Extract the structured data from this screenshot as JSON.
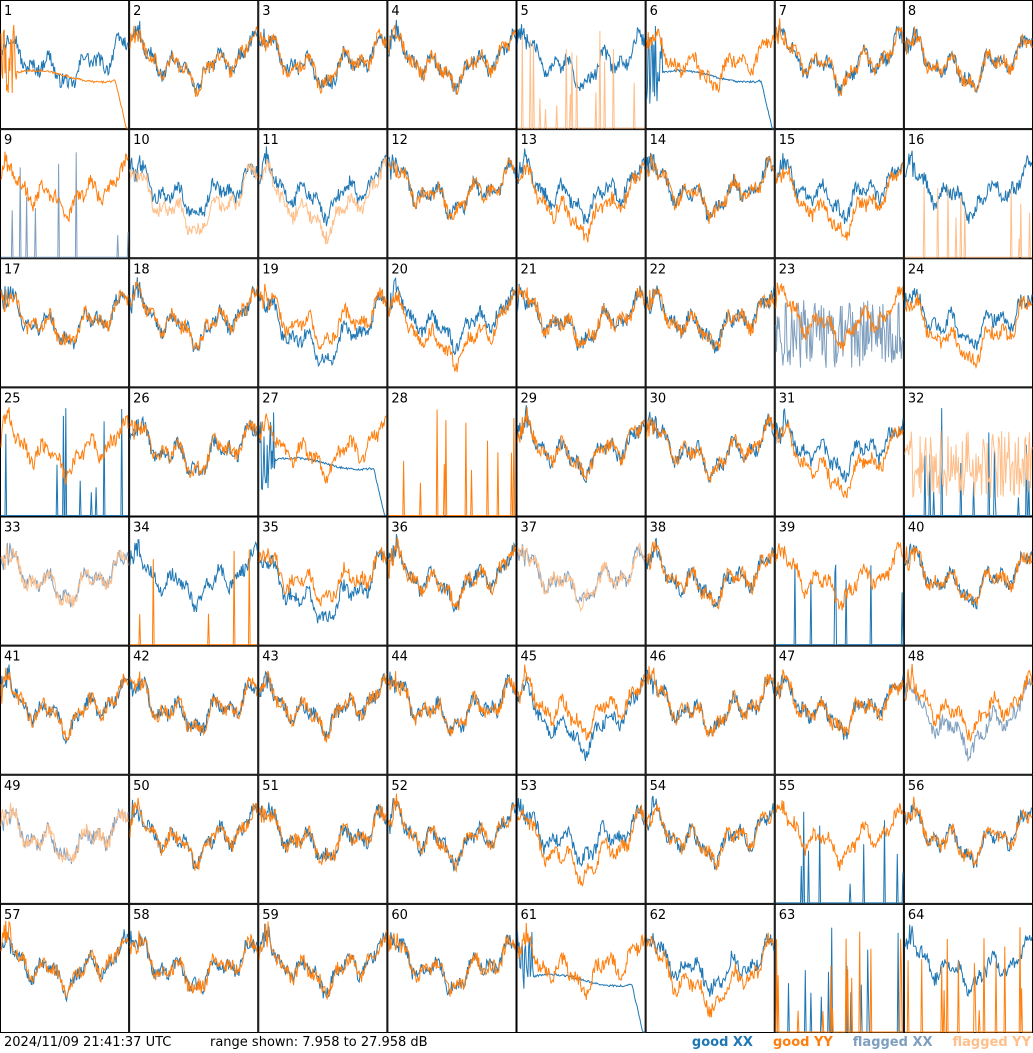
{
  "footer": {
    "timestamp": "2024/11/09 21:41:37 UTC",
    "range": "range shown: 7.958 to 27.958 dB"
  },
  "legend": [
    {
      "label": "good XX",
      "color": "#1f77b4"
    },
    {
      "label": "good YY",
      "color": "#ff7f0e"
    },
    {
      "label": "flagged XX",
      "color": "#7f9fbf"
    },
    {
      "label": "flagged YY",
      "color": "#ffbf8a"
    }
  ],
  "chart_data": {
    "type": "line",
    "layout": "8x8 small multiples",
    "ylim_db": [
      7.958,
      27.958
    ],
    "cells": [
      {
        "id": "1",
        "xx": "good",
        "yy": "good",
        "xx_shape": "normal",
        "yy_shape": "smooth_droop"
      },
      {
        "id": "2",
        "xx": "good",
        "yy": "good",
        "xx_shape": "normal",
        "yy_shape": "normal"
      },
      {
        "id": "3",
        "xx": "good",
        "yy": "good",
        "xx_shape": "normal",
        "yy_shape": "normal"
      },
      {
        "id": "4",
        "xx": "good",
        "yy": "good",
        "xx_shape": "normal",
        "yy_shape": "normal"
      },
      {
        "id": "5",
        "xx": "good",
        "yy": "flagged",
        "xx_shape": "normal",
        "yy_shape": "spikes"
      },
      {
        "id": "6",
        "xx": "good",
        "yy": "good",
        "xx_shape": "smooth_droop",
        "yy_shape": "normal"
      },
      {
        "id": "7",
        "xx": "good",
        "yy": "good",
        "xx_shape": "normal",
        "yy_shape": "normal"
      },
      {
        "id": "8",
        "xx": "good",
        "yy": "good",
        "xx_shape": "normal",
        "yy_shape": "normal"
      },
      {
        "id": "9",
        "xx": "flagged",
        "yy": "good",
        "xx_shape": "spikes",
        "yy_shape": "normal"
      },
      {
        "id": "10",
        "xx": "good",
        "yy": "flagged",
        "xx_shape": "normal",
        "yy_shape": "deep"
      },
      {
        "id": "11",
        "xx": "good",
        "yy": "flagged",
        "xx_shape": "normal",
        "yy_shape": "deep"
      },
      {
        "id": "12",
        "xx": "good",
        "yy": "good",
        "xx_shape": "normal",
        "yy_shape": "normal"
      },
      {
        "id": "13",
        "xx": "good",
        "yy": "good",
        "xx_shape": "normal",
        "yy_shape": "deep"
      },
      {
        "id": "14",
        "xx": "good",
        "yy": "good",
        "xx_shape": "normal",
        "yy_shape": "normal"
      },
      {
        "id": "15",
        "xx": "good",
        "yy": "good",
        "xx_shape": "normal",
        "yy_shape": "deep"
      },
      {
        "id": "16",
        "xx": "good",
        "yy": "flagged",
        "xx_shape": "normal",
        "yy_shape": "spikes"
      },
      {
        "id": "17",
        "xx": "good",
        "yy": "good",
        "xx_shape": "normal",
        "yy_shape": "normal"
      },
      {
        "id": "18",
        "xx": "good",
        "yy": "good",
        "xx_shape": "normal",
        "yy_shape": "normal"
      },
      {
        "id": "19",
        "xx": "good",
        "yy": "good",
        "xx_shape": "deep",
        "yy_shape": "normal"
      },
      {
        "id": "20",
        "xx": "good",
        "yy": "good",
        "xx_shape": "normal",
        "yy_shape": "deep"
      },
      {
        "id": "21",
        "xx": "good",
        "yy": "good",
        "xx_shape": "normal",
        "yy_shape": "normal"
      },
      {
        "id": "22",
        "xx": "good",
        "yy": "good",
        "xx_shape": "normal",
        "yy_shape": "normal"
      },
      {
        "id": "23",
        "xx": "flagged",
        "yy": "good",
        "xx_shape": "noisy",
        "yy_shape": "normal"
      },
      {
        "id": "24",
        "xx": "good",
        "yy": "good",
        "xx_shape": "normal",
        "yy_shape": "deep"
      },
      {
        "id": "25",
        "xx": "good",
        "yy": "good",
        "xx_shape": "spikes",
        "yy_shape": "normal"
      },
      {
        "id": "26",
        "xx": "good",
        "yy": "good",
        "xx_shape": "normal",
        "yy_shape": "normal"
      },
      {
        "id": "27",
        "xx": "good",
        "yy": "good",
        "xx_shape": "smooth_droop",
        "yy_shape": "normal"
      },
      {
        "id": "28",
        "xx": "good",
        "yy": "good",
        "xx_shape": "none",
        "yy_shape": "spikes"
      },
      {
        "id": "29",
        "xx": "good",
        "yy": "good",
        "xx_shape": "normal",
        "yy_shape": "normal"
      },
      {
        "id": "30",
        "xx": "good",
        "yy": "good",
        "xx_shape": "normal",
        "yy_shape": "normal"
      },
      {
        "id": "31",
        "xx": "good",
        "yy": "good",
        "xx_shape": "normal",
        "yy_shape": "deep"
      },
      {
        "id": "32",
        "xx": "good",
        "yy": "flagged",
        "xx_shape": "spikes",
        "yy_shape": "noisy"
      },
      {
        "id": "33",
        "xx": "flagged",
        "yy": "flagged",
        "xx_shape": "normal",
        "yy_shape": "normal"
      },
      {
        "id": "34",
        "xx": "good",
        "yy": "good",
        "xx_shape": "normal",
        "yy_shape": "spikes"
      },
      {
        "id": "35",
        "xx": "good",
        "yy": "good",
        "xx_shape": "deep",
        "yy_shape": "normal"
      },
      {
        "id": "36",
        "xx": "good",
        "yy": "good",
        "xx_shape": "normal",
        "yy_shape": "normal"
      },
      {
        "id": "37",
        "xx": "flagged",
        "yy": "flagged",
        "xx_shape": "normal",
        "yy_shape": "normal"
      },
      {
        "id": "38",
        "xx": "good",
        "yy": "good",
        "xx_shape": "normal",
        "yy_shape": "normal"
      },
      {
        "id": "39",
        "xx": "good",
        "yy": "good",
        "xx_shape": "spikes",
        "yy_shape": "normal"
      },
      {
        "id": "40",
        "xx": "good",
        "yy": "good",
        "xx_shape": "normal",
        "yy_shape": "normal"
      },
      {
        "id": "41",
        "xx": "good",
        "yy": "good",
        "xx_shape": "normal",
        "yy_shape": "normal"
      },
      {
        "id": "42",
        "xx": "good",
        "yy": "good",
        "xx_shape": "normal",
        "yy_shape": "normal"
      },
      {
        "id": "43",
        "xx": "good",
        "yy": "good",
        "xx_shape": "normal",
        "yy_shape": "normal"
      },
      {
        "id": "44",
        "xx": "good",
        "yy": "good",
        "xx_shape": "normal",
        "yy_shape": "normal"
      },
      {
        "id": "45",
        "xx": "good",
        "yy": "good",
        "xx_shape": "deep",
        "yy_shape": "normal"
      },
      {
        "id": "46",
        "xx": "good",
        "yy": "good",
        "xx_shape": "normal",
        "yy_shape": "normal"
      },
      {
        "id": "47",
        "xx": "good",
        "yy": "good",
        "xx_shape": "normal",
        "yy_shape": "normal"
      },
      {
        "id": "48",
        "xx": "flagged",
        "yy": "good",
        "xx_shape": "deep",
        "yy_shape": "normal"
      },
      {
        "id": "49",
        "xx": "flagged",
        "yy": "flagged",
        "xx_shape": "normal",
        "yy_shape": "normal"
      },
      {
        "id": "50",
        "xx": "good",
        "yy": "good",
        "xx_shape": "normal",
        "yy_shape": "normal"
      },
      {
        "id": "51",
        "xx": "good",
        "yy": "good",
        "xx_shape": "normal",
        "yy_shape": "normal"
      },
      {
        "id": "52",
        "xx": "good",
        "yy": "good",
        "xx_shape": "normal",
        "yy_shape": "normal"
      },
      {
        "id": "53",
        "xx": "good",
        "yy": "good",
        "xx_shape": "normal",
        "yy_shape": "deep"
      },
      {
        "id": "54",
        "xx": "good",
        "yy": "good",
        "xx_shape": "normal",
        "yy_shape": "normal"
      },
      {
        "id": "55",
        "xx": "good",
        "yy": "good",
        "xx_shape": "spikes",
        "yy_shape": "normal"
      },
      {
        "id": "56",
        "xx": "good",
        "yy": "good",
        "xx_shape": "normal",
        "yy_shape": "normal"
      },
      {
        "id": "57",
        "xx": "good",
        "yy": "good",
        "xx_shape": "normal",
        "yy_shape": "normal"
      },
      {
        "id": "58",
        "xx": "good",
        "yy": "good",
        "xx_shape": "normal",
        "yy_shape": "normal"
      },
      {
        "id": "59",
        "xx": "good",
        "yy": "good",
        "xx_shape": "normal",
        "yy_shape": "normal"
      },
      {
        "id": "60",
        "xx": "good",
        "yy": "good",
        "xx_shape": "normal",
        "yy_shape": "normal"
      },
      {
        "id": "61",
        "xx": "good",
        "yy": "good",
        "xx_shape": "smooth_droop",
        "yy_shape": "normal"
      },
      {
        "id": "62",
        "xx": "good",
        "yy": "good",
        "xx_shape": "normal",
        "yy_shape": "deep"
      },
      {
        "id": "63",
        "xx": "good",
        "yy": "good",
        "xx_shape": "spikes",
        "yy_shape": "spikes"
      },
      {
        "id": "64",
        "xx": "good",
        "yy": "good",
        "xx_shape": "normal",
        "yy_shape": "spikes"
      }
    ]
  }
}
